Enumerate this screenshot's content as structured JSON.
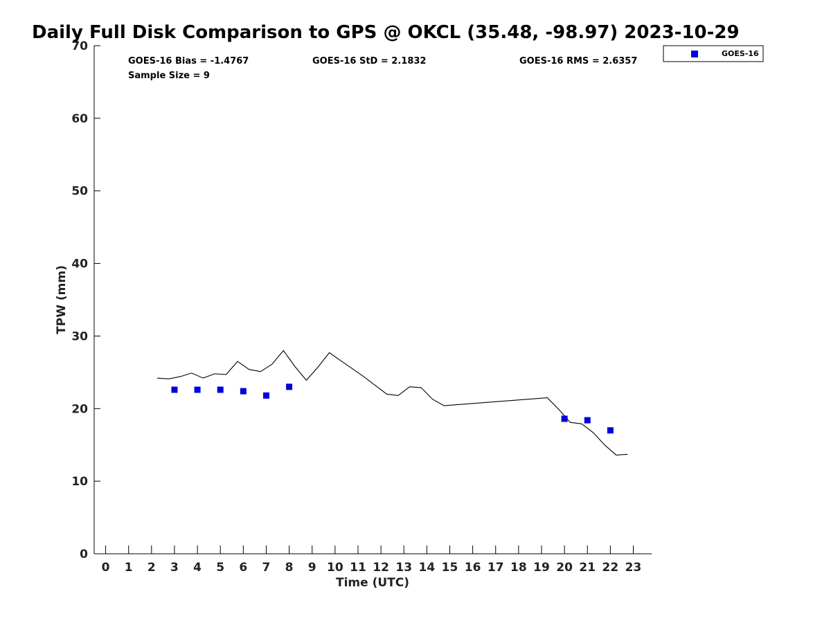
{
  "chart_data": {
    "type": "line",
    "title": "Daily Full Disk Comparison to GPS @ OKCL (35.48, -98.97) 2023-10-29",
    "xlabel": "Time (UTC)",
    "ylabel": "TPW (mm)",
    "xlim": [
      -0.5,
      23.8
    ],
    "ylim": [
      0,
      70
    ],
    "x_ticks": [
      0,
      1,
      2,
      3,
      4,
      5,
      6,
      7,
      8,
      9,
      10,
      11,
      12,
      13,
      14,
      15,
      16,
      17,
      18,
      19,
      20,
      21,
      22,
      23
    ],
    "y_ticks": [
      0,
      10,
      20,
      30,
      40,
      50,
      60,
      70
    ],
    "grid": false,
    "legend_position": "top-right",
    "stats": {
      "bias": "GOES-16 Bias = -1.4767",
      "std": "GOES-16 StD = 2.1832",
      "rms": "GOES-16 RMS = 2.6357",
      "sample": "Sample Size = 9"
    },
    "series": [
      {
        "kind": "line",
        "color": "#000000",
        "x": [
          2.25,
          2.75,
          3.25,
          3.75,
          4.25,
          4.75,
          5.25,
          5.75,
          6.25,
          6.75,
          7.25,
          7.75,
          8.25,
          8.75,
          9.25,
          9.75,
          10.25,
          10.75,
          11.25,
          11.75,
          12.25,
          12.75,
          13.25,
          13.75,
          14.25,
          14.75,
          19.25,
          19.75,
          20.25,
          20.75,
          21.25,
          21.75,
          22.25,
          22.75
        ],
        "y": [
          24.2,
          24.1,
          24.4,
          24.9,
          24.2,
          24.8,
          24.7,
          26.5,
          25.4,
          25.1,
          26.1,
          28.0,
          25.8,
          23.9,
          25.7,
          27.7,
          26.6,
          25.5,
          24.4,
          23.2,
          22.0,
          21.8,
          23.0,
          22.9,
          21.3,
          20.4,
          21.5,
          19.9,
          18.1,
          17.9,
          16.7,
          15.0,
          13.6,
          13.7
        ]
      },
      {
        "kind": "scatter",
        "name": "GOES-16",
        "color": "#0000dd",
        "x": [
          3,
          4,
          5,
          6,
          7,
          8,
          20,
          21,
          22
        ],
        "y": [
          22.6,
          22.6,
          22.6,
          22.4,
          21.8,
          23.0,
          18.6,
          18.4,
          17.0
        ]
      }
    ]
  }
}
